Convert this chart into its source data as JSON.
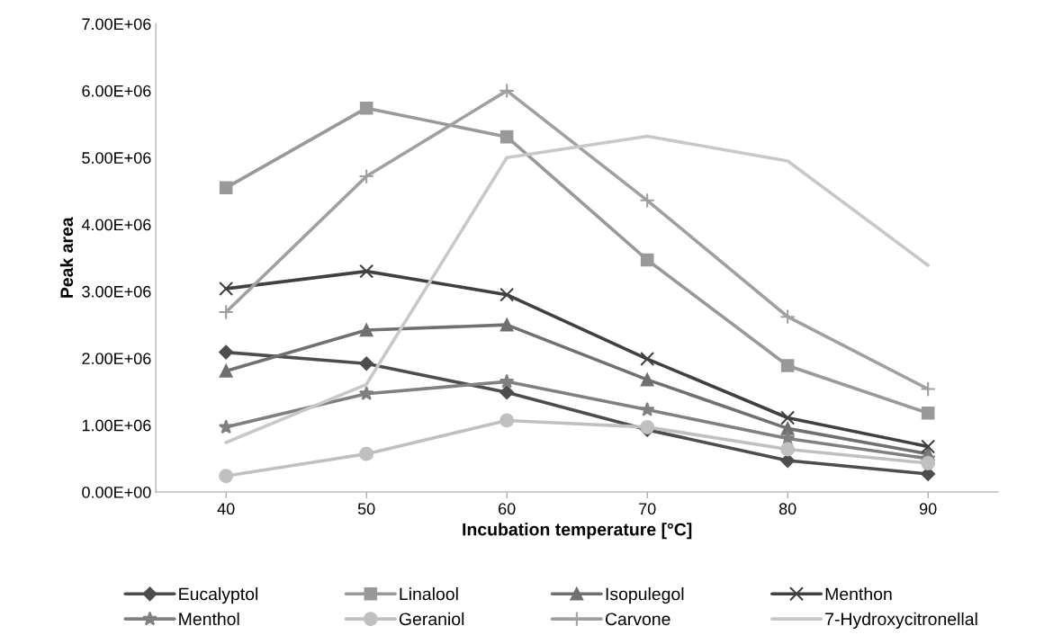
{
  "chart_data": {
    "type": "line",
    "xlabel": "Incubation temperature [°C]",
    "ylabel": "Peak area",
    "categories": [
      "40",
      "50",
      "60",
      "70",
      "80",
      "90"
    ],
    "ylim": [
      0,
      7000000
    ],
    "yticks": [
      {
        "value": 0,
        "label": "0.00E+00"
      },
      {
        "value": 1000000,
        "label": "1.00E+06"
      },
      {
        "value": 2000000,
        "label": "2.00E+06"
      },
      {
        "value": 3000000,
        "label": "3.00E+06"
      },
      {
        "value": 4000000,
        "label": "4.00E+06"
      },
      {
        "value": 5000000,
        "label": "5.00E+06"
      },
      {
        "value": 6000000,
        "label": "6.00E+06"
      },
      {
        "value": 7000000,
        "label": "7.00E+06"
      }
    ],
    "grid": false,
    "legend": "bottom",
    "series": [
      {
        "name": "Eucalyptol",
        "color": "#4d4d4d",
        "marker": "diamond",
        "values": [
          2090000,
          1920000,
          1490000,
          930000,
          470000,
          270000
        ]
      },
      {
        "name": "Linalool",
        "color": "#999999",
        "marker": "square",
        "values": [
          4550000,
          5740000,
          5310000,
          3470000,
          1890000,
          1180000
        ]
      },
      {
        "name": "Isopulegol",
        "color": "#707070",
        "marker": "triangle",
        "values": [
          1810000,
          2420000,
          2500000,
          1680000,
          950000,
          570000
        ]
      },
      {
        "name": "Menthon",
        "color": "#404040",
        "marker": "cross",
        "values": [
          3040000,
          3300000,
          2950000,
          1990000,
          1110000,
          680000
        ]
      },
      {
        "name": "Menthol",
        "color": "#808080",
        "marker": "star",
        "values": [
          970000,
          1470000,
          1650000,
          1230000,
          800000,
          500000
        ]
      },
      {
        "name": "Geraniol",
        "color": "#c0c0c0",
        "marker": "circle",
        "values": [
          240000,
          570000,
          1070000,
          970000,
          640000,
          430000
        ]
      },
      {
        "name": "Carvone",
        "color": "#a0a0a0",
        "marker": "plus",
        "values": [
          2690000,
          4720000,
          6000000,
          4360000,
          2620000,
          1540000
        ]
      },
      {
        "name": "7-Hydroxycitronellal",
        "color": "#c8c8c8",
        "marker": "none",
        "values": [
          740000,
          1610000,
          5000000,
          5320000,
          4950000,
          3390000
        ]
      }
    ]
  }
}
